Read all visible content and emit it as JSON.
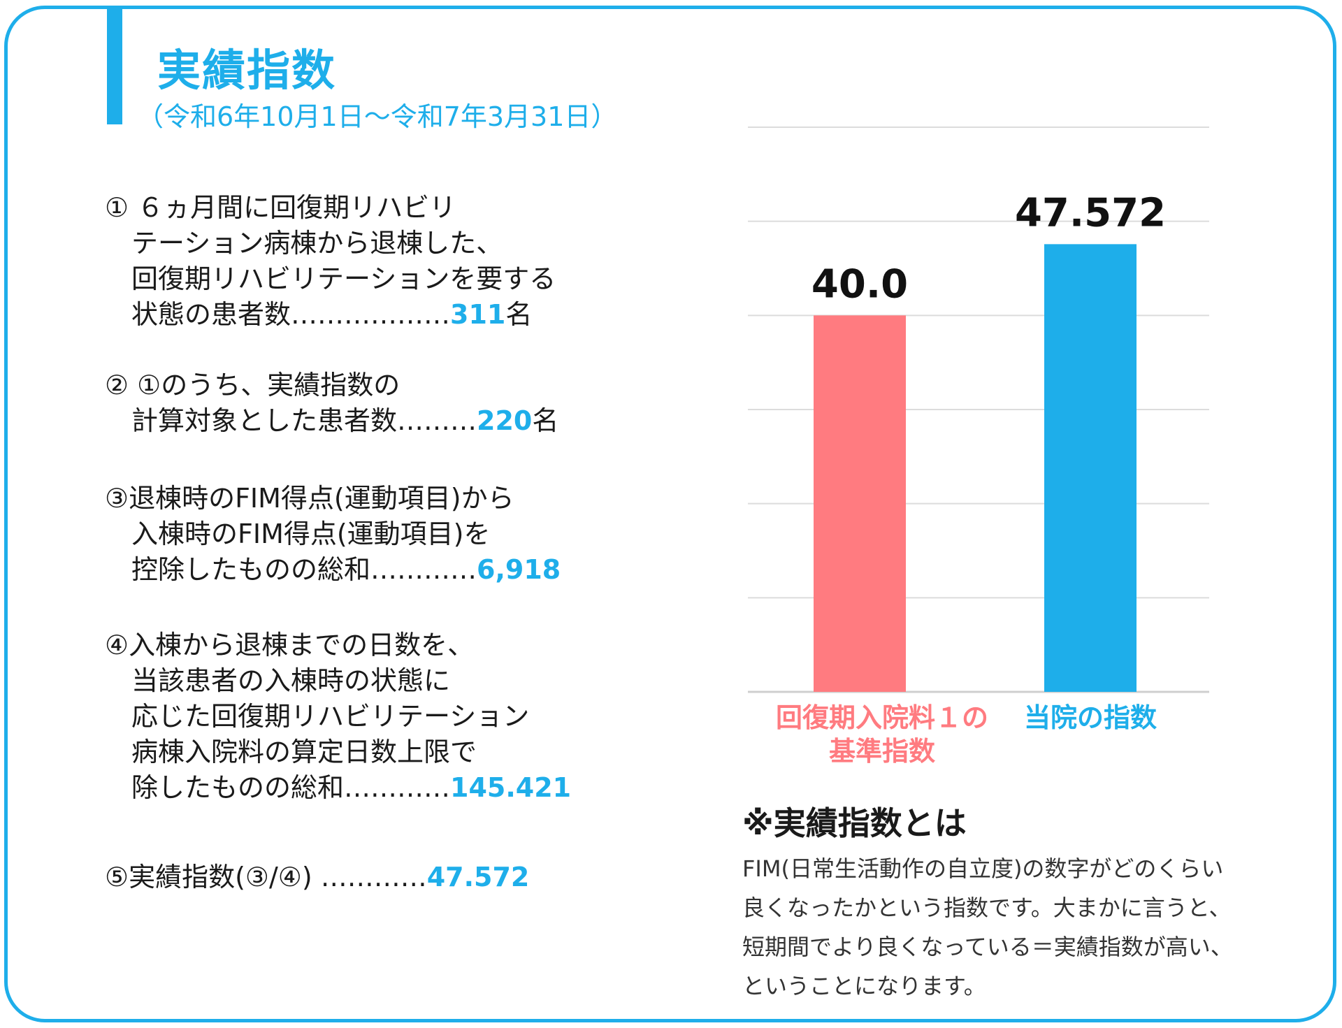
{
  "header": {
    "title": "実績指数",
    "period": "（令和6年10月1日～令和7年3月31日）"
  },
  "items": [
    {
      "lines": [
        "① ６ヵ月間に回復期リハビリ",
        "　テーション病棟から退棟した、",
        "　回復期リハビリテーションを要する",
        "　状態の患者数………………"
      ],
      "value": "311",
      "unit": "名"
    },
    {
      "lines": [
        "② ①のうち、実績指数の",
        "　計算対象とした患者数………"
      ],
      "value": "220",
      "unit": "名"
    },
    {
      "lines": [
        "③退棟時のFIM得点(運動項目)から",
        "　入棟時のFIM得点(運動項目)を",
        "　控除したものの総和…………"
      ],
      "value": "6,918",
      "unit": ""
    },
    {
      "lines": [
        "④入棟から退棟までの日数を、",
        "　当該患者の入棟時の状態に",
        "　応じた回復期リハビリテーション",
        "　病棟入院料の算定日数上限で",
        "　除したものの総和…………"
      ],
      "value": "145.421",
      "unit": ""
    },
    {
      "lines": [
        "⑤実績指数(③/④) …………"
      ],
      "value": "47.572",
      "unit": ""
    }
  ],
  "chart_data": {
    "type": "bar",
    "categories": [
      "回復期入院料１の\n基準指数",
      "当院の指数"
    ],
    "values": [
      40.0,
      47.572
    ],
    "value_labels": [
      "40.0",
      "47.572"
    ],
    "colors": [
      "#ff7b80",
      "#1eaeea"
    ],
    "ylim": [
      0,
      60
    ],
    "y_gridlines": [
      0,
      10,
      20,
      30,
      40,
      50,
      60
    ],
    "grid": true,
    "xlabel": "",
    "ylabel": ""
  },
  "note": {
    "title": "※実績指数とは",
    "lines": [
      "FIM(日常生活動作の自立度)の数字がどのくらい",
      "良くなったかという指数です。大まかに言うと、",
      "短期間でより良くなっている＝実績指数が高い、",
      "ということになります。"
    ]
  }
}
